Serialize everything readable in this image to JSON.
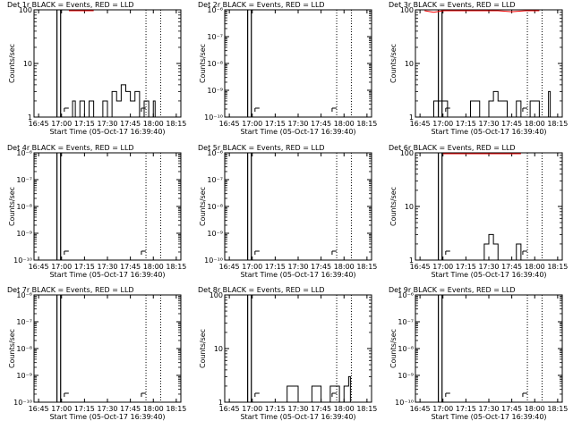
{
  "figure": {
    "date_string": "05-Oct-17 16:39:40",
    "ylabel": "Counts/sec",
    "xlabel": "Start Time (05-Oct-17 16:39:40)",
    "x_ticks": [
      "16:45",
      "17:00",
      "17:15",
      "17:30",
      "17:45",
      "18:00",
      "18:15"
    ],
    "events_color": "#000000",
    "lld_color": "#ff0000"
  },
  "chart_data": [
    {
      "type": "line",
      "title": "Det 1r BLACK = Events, RED = LLD",
      "yscale": "log",
      "ylim": [
        1,
        100
      ],
      "y_ticks": [
        {
          "v": 1,
          "label": "1"
        },
        {
          "v": 10,
          "label": "10"
        },
        {
          "v": 100,
          "label": "100"
        }
      ],
      "events": [
        [
          16.95,
          1
        ],
        [
          17.12,
          2
        ],
        [
          17.15,
          1
        ],
        [
          17.2,
          2
        ],
        [
          17.25,
          1
        ],
        [
          17.3,
          2
        ],
        [
          17.35,
          1
        ],
        [
          17.45,
          2
        ],
        [
          17.5,
          1
        ],
        [
          17.55,
          3
        ],
        [
          17.6,
          2
        ],
        [
          17.65,
          4
        ],
        [
          17.7,
          3
        ],
        [
          17.75,
          2
        ],
        [
          17.8,
          3
        ],
        [
          17.85,
          1
        ],
        [
          17.9,
          2
        ],
        [
          17.95,
          1
        ],
        [
          18.0,
          2
        ]
      ],
      "lld": [
        [
          17.08,
          100
        ],
        [
          17.2,
          97
        ],
        [
          17.35,
          100
        ]
      ]
    },
    {
      "type": "line",
      "title": "Det 2r BLACK = Events, RED = LLD",
      "yscale": "log",
      "ylim": [
        1e-10,
        1e-06
      ],
      "y_ticks": [
        {
          "v": 1e-10,
          "label": "10⁻¹⁰"
        },
        {
          "v": 1e-09,
          "label": "10⁻⁹"
        },
        {
          "v": 1e-08,
          "label": "10⁻⁸"
        },
        {
          "v": 1e-07,
          "label": "10⁻⁷"
        },
        {
          "v": 1e-06,
          "label": "10⁻⁶"
        }
      ],
      "events": [],
      "lld": []
    },
    {
      "type": "line",
      "title": "Det 3r BLACK = Events, RED = LLD",
      "yscale": "log",
      "ylim": [
        1,
        100
      ],
      "y_ticks": [
        {
          "v": 1,
          "label": "1"
        },
        {
          "v": 10,
          "label": "10"
        },
        {
          "v": 100,
          "label": "100"
        }
      ],
      "events": [
        [
          16.8,
          1
        ],
        [
          16.9,
          2
        ],
        [
          17.05,
          1
        ],
        [
          17.15,
          1
        ],
        [
          17.3,
          2
        ],
        [
          17.4,
          1
        ],
        [
          17.5,
          2
        ],
        [
          17.55,
          3
        ],
        [
          17.6,
          2
        ],
        [
          17.7,
          1
        ],
        [
          17.8,
          2
        ],
        [
          17.85,
          1
        ],
        [
          17.95,
          2
        ],
        [
          18.05,
          1
        ],
        [
          18.15,
          3
        ]
      ],
      "lld": [
        [
          16.8,
          100
        ],
        [
          16.9,
          90
        ],
        [
          17.0,
          100
        ],
        [
          17.6,
          100
        ],
        [
          17.75,
          92
        ],
        [
          17.9,
          100
        ],
        [
          18.05,
          100
        ]
      ]
    },
    {
      "type": "line",
      "title": "Det 4r BLACK = Events, RED = LLD",
      "yscale": "log",
      "ylim": [
        1e-10,
        1e-06
      ],
      "y_ticks": [
        {
          "v": 1e-10,
          "label": "10⁻¹⁰"
        },
        {
          "v": 1e-09,
          "label": "10⁻⁹"
        },
        {
          "v": 1e-08,
          "label": "10⁻⁸"
        },
        {
          "v": 1e-07,
          "label": "10⁻⁷"
        },
        {
          "v": 1e-06,
          "label": "10⁻⁶"
        }
      ],
      "events": [],
      "lld": []
    },
    {
      "type": "line",
      "title": "Det 5r BLACK = Events, RED = LLD",
      "yscale": "log",
      "ylim": [
        1e-10,
        1e-06
      ],
      "y_ticks": [
        {
          "v": 1e-10,
          "label": "10⁻¹⁰"
        },
        {
          "v": 1e-09,
          "label": "10⁻⁹"
        },
        {
          "v": 1e-08,
          "label": "10⁻⁸"
        },
        {
          "v": 1e-07,
          "label": "10⁻⁷"
        },
        {
          "v": 1e-06,
          "label": "10⁻⁶"
        }
      ],
      "events": [],
      "lld": []
    },
    {
      "type": "line",
      "title": "Det 6r BLACK = Events, RED = LLD",
      "yscale": "log",
      "ylim": [
        1,
        100
      ],
      "y_ticks": [
        {
          "v": 1,
          "label": "1"
        },
        {
          "v": 10,
          "label": "10"
        },
        {
          "v": 100,
          "label": "100"
        }
      ],
      "events": [
        [
          17.35,
          1
        ],
        [
          17.45,
          2
        ],
        [
          17.5,
          3
        ],
        [
          17.55,
          2
        ],
        [
          17.6,
          1
        ],
        [
          17.7,
          1
        ],
        [
          17.8,
          2
        ],
        [
          17.85,
          1
        ]
      ],
      "lld": [
        [
          17.0,
          100
        ],
        [
          17.72,
          100
        ],
        [
          17.85,
          100
        ]
      ]
    },
    {
      "type": "line",
      "title": "Det 7r BLACK = Events, RED = LLD",
      "yscale": "log",
      "ylim": [
        1e-10,
        1e-06
      ],
      "y_ticks": [
        {
          "v": 1e-10,
          "label": "10⁻¹⁰"
        },
        {
          "v": 1e-09,
          "label": "10⁻⁹"
        },
        {
          "v": 1e-08,
          "label": "10⁻⁸"
        },
        {
          "v": 1e-07,
          "label": "10⁻⁷"
        },
        {
          "v": 1e-06,
          "label": "10⁻⁶"
        }
      ],
      "events": [],
      "lld": []
    },
    {
      "type": "line",
      "title": "Det 8r BLACK = Events, RED = LLD",
      "yscale": "log",
      "ylim": [
        1,
        100
      ],
      "y_ticks": [
        {
          "v": 1,
          "label": "1"
        },
        {
          "v": 10,
          "label": "10"
        },
        {
          "v": 100,
          "label": "100"
        }
      ],
      "events": [
        [
          17.05,
          1
        ],
        [
          17.38,
          2
        ],
        [
          17.5,
          1
        ],
        [
          17.65,
          2
        ],
        [
          17.75,
          1
        ],
        [
          17.85,
          2
        ],
        [
          17.95,
          1
        ],
        [
          18.0,
          2
        ],
        [
          18.05,
          3
        ]
      ],
      "lld": []
    },
    {
      "type": "line",
      "title": "Det 9r BLACK = Events, RED = LLD",
      "yscale": "log",
      "ylim": [
        1e-10,
        1e-06
      ],
      "y_ticks": [
        {
          "v": 1e-10,
          "label": "10⁻¹⁰"
        },
        {
          "v": 1e-09,
          "label": "10⁻⁹"
        },
        {
          "v": 1e-08,
          "label": "10⁻⁸"
        },
        {
          "v": 1e-07,
          "label": "10⁻⁷"
        },
        {
          "v": 1e-06,
          "label": "10⁻⁶"
        }
      ],
      "events": [],
      "lld": []
    }
  ]
}
